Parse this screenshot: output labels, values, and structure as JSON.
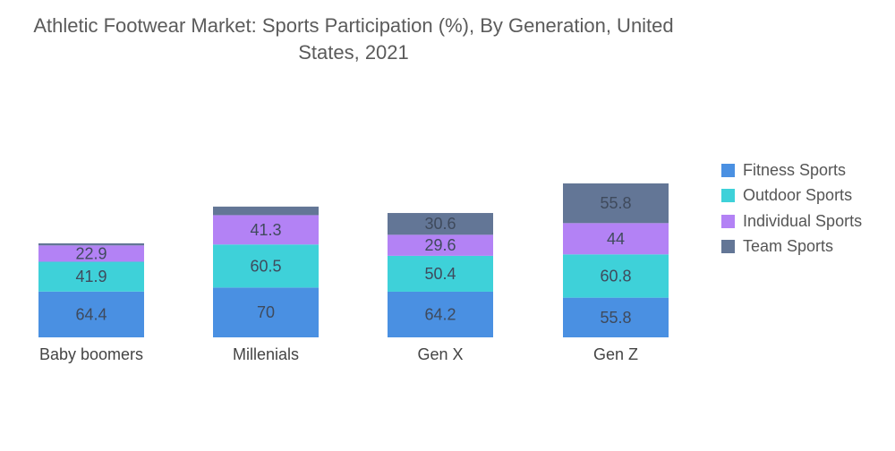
{
  "title_line1": "Athletic Footwear Market: Sports Participation (%), By Generation, United",
  "title_line2": "States, 2021",
  "chart_data": {
    "type": "bar",
    "stacked": true,
    "title": "Athletic Footwear Market: Sports Participation (%), By Generation, United States, 2021",
    "categories": [
      "Baby boomers",
      "Millenials",
      "Gen X",
      "Gen Z"
    ],
    "series": [
      {
        "name": "Fitness Sports",
        "color": "#4a90e2",
        "values": [
          64.4,
          70,
          64.2,
          55.8
        ],
        "labels": [
          "64.4",
          "70",
          "64.2",
          "55.8"
        ]
      },
      {
        "name": "Outdoor Sports",
        "color": "#3ed1d9",
        "values": [
          41.9,
          60.5,
          50.4,
          60.8
        ],
        "labels": [
          "41.9",
          "60.5",
          "50.4",
          "60.8"
        ]
      },
      {
        "name": "Individual Sports",
        "color": "#b382f5",
        "values": [
          22.9,
          41.3,
          29.6,
          44
        ],
        "labels": [
          "22.9",
          "41.3",
          "29.6",
          "44"
        ]
      },
      {
        "name": "Team Sports",
        "color": "#637696",
        "values": [
          3,
          12,
          30.6,
          55.8
        ],
        "labels": [
          "",
          "",
          "30.6",
          "55.8"
        ]
      }
    ],
    "xlabel": "",
    "ylabel": "",
    "grid": false,
    "legend_position": "right"
  }
}
